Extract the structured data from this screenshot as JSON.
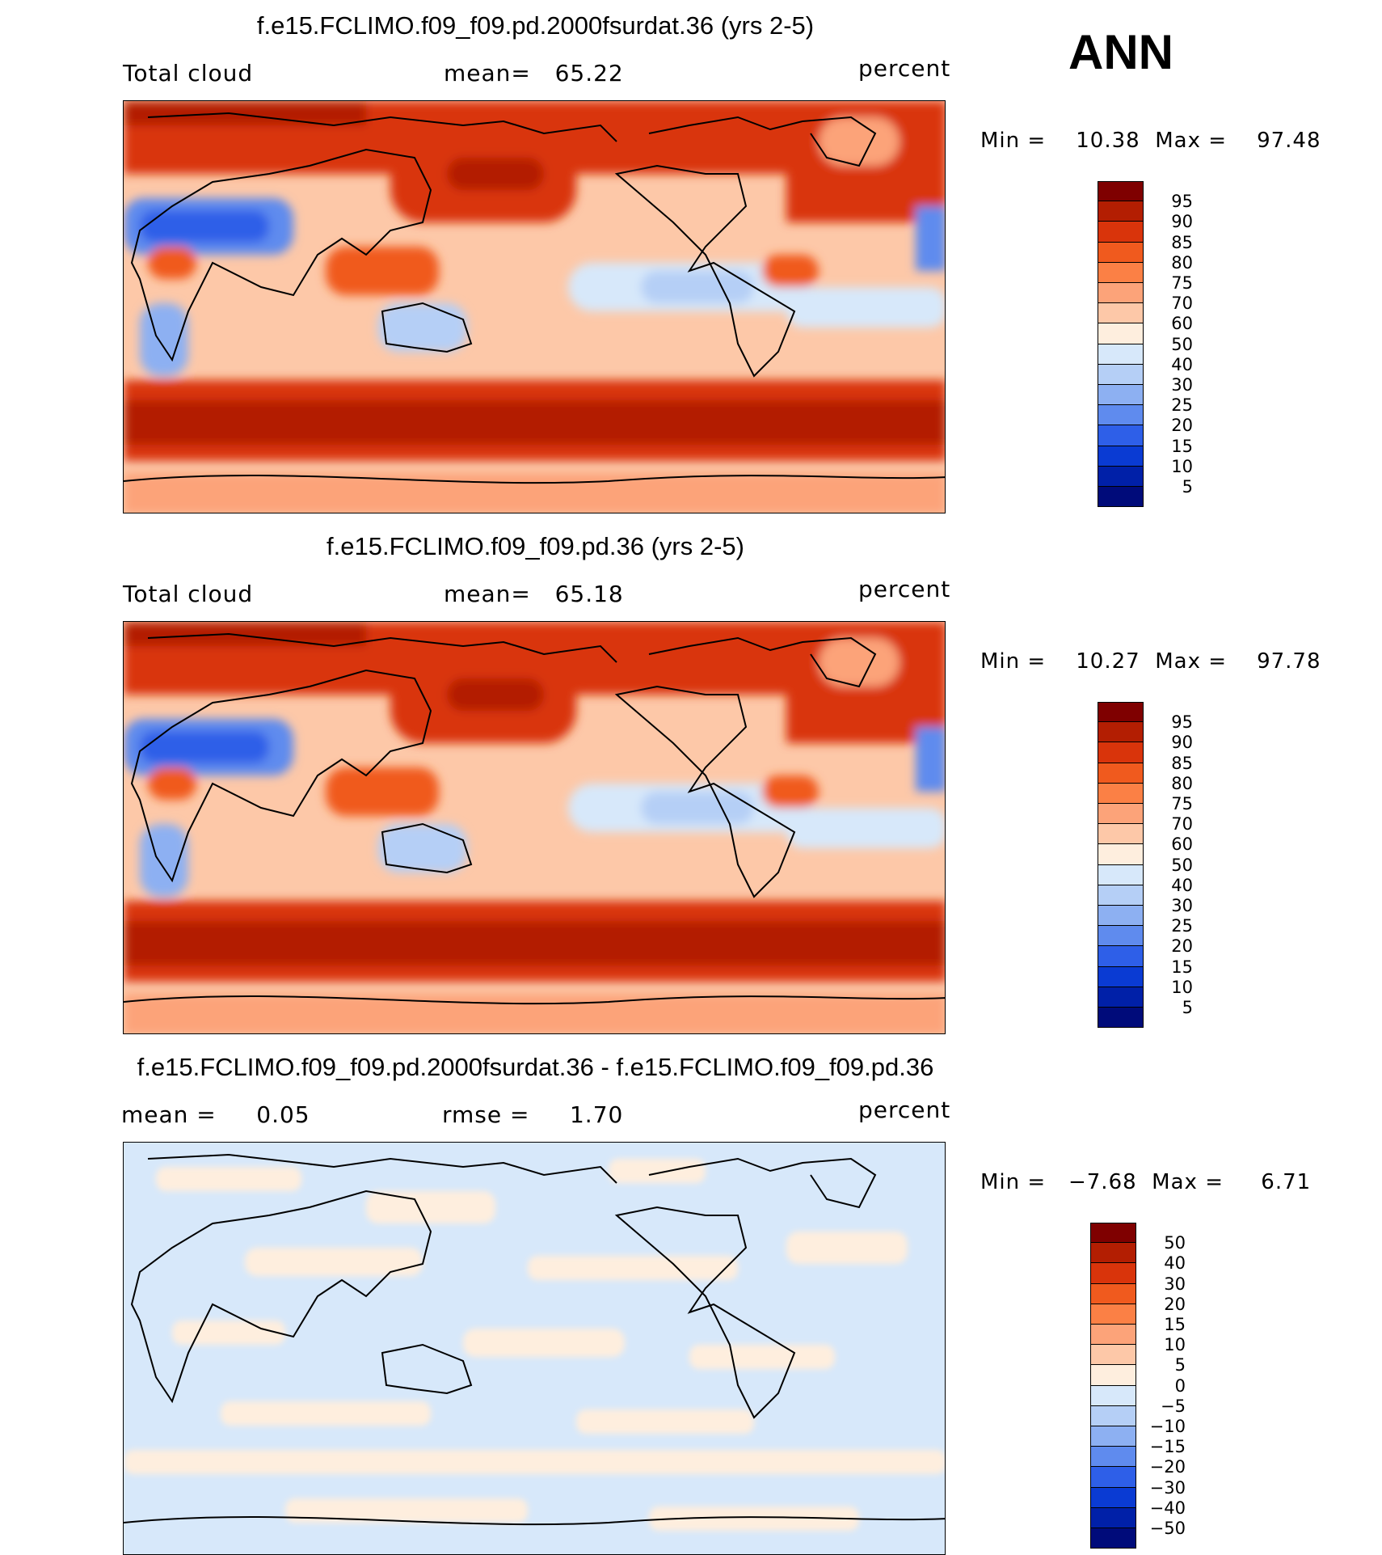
{
  "season": "ANN",
  "panels": [
    {
      "id": "test",
      "title": "f.e15.FCLIMO.f09_f09.pd.2000fsurdat.36 (yrs 2-5)",
      "left_label": "Total cloud",
      "center_label": "mean=   65.22",
      "units": "percent",
      "minmax": "Min =    10.38  Max =    97.48",
      "colorbar": {
        "labels": [
          "95",
          "90",
          "85",
          "80",
          "75",
          "70",
          "60",
          "50",
          "40",
          "30",
          "25",
          "20",
          "15",
          "10",
          "5"
        ],
        "colors": [
          "#7f0000",
          "#b31e02",
          "#d9340b",
          "#f05a1e",
          "#fb8045",
          "#fca379",
          "#fdc8a8",
          "#feeede",
          "#d7e8fa",
          "#b5cff6",
          "#8db0f2",
          "#5f8bee",
          "#2e5fe8",
          "#0a3bd3",
          "#0020a8",
          "#000b7a"
        ]
      }
    },
    {
      "id": "control",
      "title": "f.e15.FCLIMO.f09_f09.pd.36 (yrs 2-5)",
      "left_label": "Total cloud",
      "center_label": "mean=   65.18",
      "units": "percent",
      "minmax": "Min =    10.27  Max =    97.78",
      "colorbar": {
        "labels": [
          "95",
          "90",
          "85",
          "80",
          "75",
          "70",
          "60",
          "50",
          "40",
          "30",
          "25",
          "20",
          "15",
          "10",
          "5"
        ],
        "colors": [
          "#7f0000",
          "#b31e02",
          "#d9340b",
          "#f05a1e",
          "#fb8045",
          "#fca379",
          "#fdc8a8",
          "#feeede",
          "#d7e8fa",
          "#b5cff6",
          "#8db0f2",
          "#5f8bee",
          "#2e5fe8",
          "#0a3bd3",
          "#0020a8",
          "#000b7a"
        ]
      }
    },
    {
      "id": "difference",
      "title": "f.e15.FCLIMO.f09_f09.pd.2000fsurdat.36 - f.e15.FCLIMO.f09_f09.pd.36",
      "left_label": "mean =     0.05",
      "center_label": "rmse =     1.70",
      "units": "percent",
      "minmax": "Min =   −7.68  Max =     6.71",
      "colorbar": {
        "labels": [
          "50",
          "40",
          "30",
          "20",
          "15",
          "10",
          "5",
          "0",
          "−5",
          "−10",
          "−15",
          "−20",
          "−30",
          "−40",
          "−50"
        ],
        "colors": [
          "#7f0000",
          "#b31e02",
          "#d9340b",
          "#f05a1e",
          "#fb8045",
          "#fca379",
          "#fdc8a8",
          "#feeede",
          "#d7e8fa",
          "#b5cff6",
          "#8db0f2",
          "#5f8bee",
          "#2e5fe8",
          "#0a3bd3",
          "#0020a8",
          "#000b7a"
        ]
      }
    }
  ]
}
